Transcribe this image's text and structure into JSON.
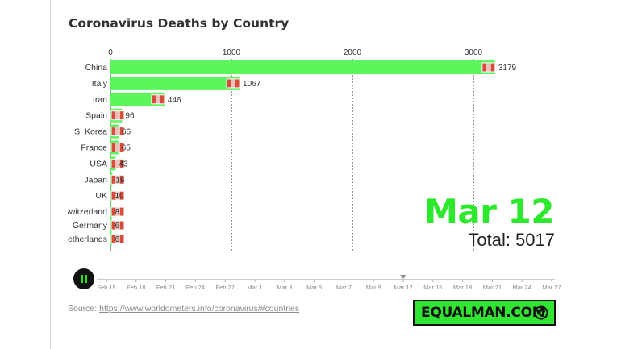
{
  "title": "Coronavirus Deaths by Country",
  "current_date": "Mar 12",
  "total_text": "Total: 5017",
  "source": {
    "prefix": "Source: ",
    "link": "https://www.worldometers.info/coronavirus/#countries"
  },
  "brand": "EQUALMAN.COM",
  "colors": {
    "bar": "#5cf55c",
    "accent": "#2ee82e",
    "brand_bg": "#33e533"
  },
  "timeline": {
    "labels": [
      "Feb 15",
      "Feb 18",
      "Feb 21",
      "Feb 24",
      "Feb 27",
      "Mar 1",
      "Mar 3",
      "Mar 5",
      "Mar 7",
      "Mar 9",
      "Mar 12",
      "Mar 15",
      "Mar 18",
      "Mar 21",
      "Mar 24",
      "Mar 27"
    ],
    "current": "Mar 12"
  },
  "chart_data": {
    "type": "bar",
    "orientation": "horizontal",
    "title": "Coronavirus Deaths by Country",
    "categories": [
      "China",
      "Italy",
      "Iran",
      "Spain",
      "S. Korea",
      "France",
      "USA",
      "Japan",
      "UK",
      "Switzerland",
      "Germany",
      "Netherlands"
    ],
    "values": [
      3179,
      1067,
      446,
      96,
      66,
      65,
      43,
      16,
      10,
      8,
      6,
      6
    ],
    "xlim": [
      0,
      3300
    ],
    "x_ticks": [
      0,
      1000,
      2000,
      3000
    ],
    "grid": "vertical dotted",
    "icons": [
      "flag-china-icon",
      "flag-italy-icon",
      "flag-iran-icon",
      "flag-spain-icon",
      "flag-south-korea-icon",
      "flag-france-icon",
      "flag-usa-icon",
      "flag-japan-icon",
      "flag-uk-icon",
      "flag-switzerland-icon",
      "flag-germany-icon",
      "flag-netherlands-icon"
    ]
  }
}
